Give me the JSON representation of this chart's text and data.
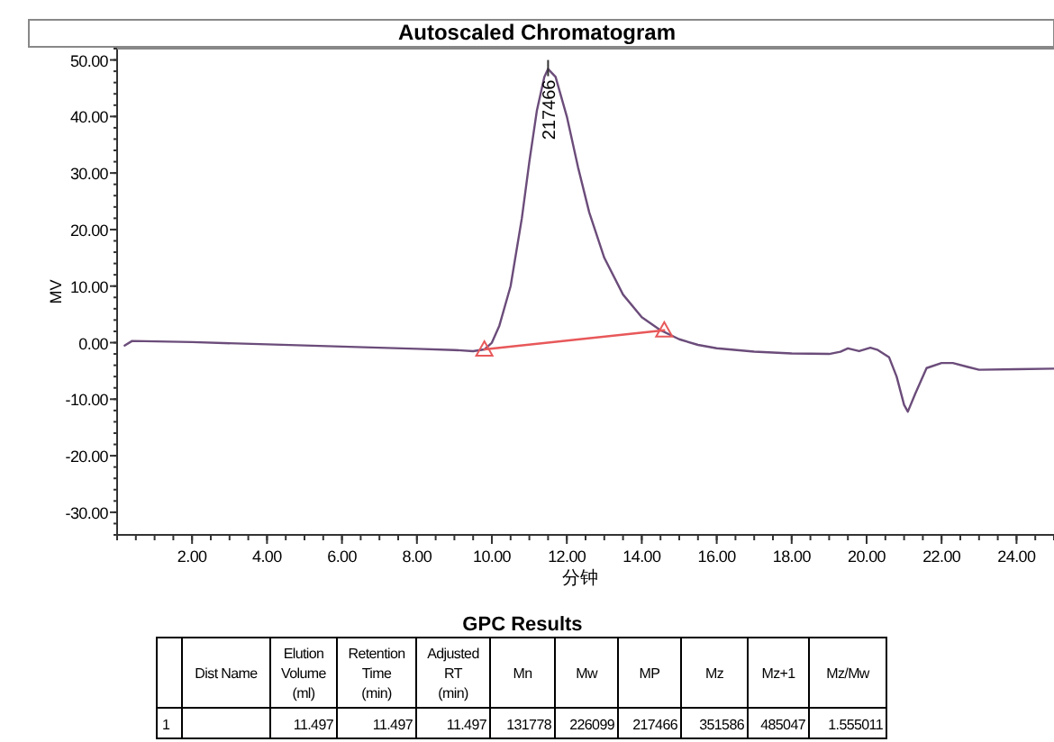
{
  "chart_data": {
    "type": "line",
    "title": "Autoscaled Chromatogram",
    "xlabel": "分钟",
    "ylabel": "MV",
    "xlim": [
      0,
      25
    ],
    "ylim": [
      -34,
      52
    ],
    "xticks": [
      {
        "value": 2,
        "label": "2.00"
      },
      {
        "value": 4,
        "label": "4.00"
      },
      {
        "value": 6,
        "label": "6.00"
      },
      {
        "value": 8,
        "label": "8.00"
      },
      {
        "value": 10,
        "label": "10.00"
      },
      {
        "value": 12,
        "label": "12.00"
      },
      {
        "value": 14,
        "label": "14.00"
      },
      {
        "value": 16,
        "label": "16.00"
      },
      {
        "value": 18,
        "label": "18.00"
      },
      {
        "value": 20,
        "label": "20.00"
      },
      {
        "value": 22,
        "label": "22.00"
      },
      {
        "value": 24,
        "label": "24.00"
      }
    ],
    "yticks": [
      {
        "value": -30,
        "label": "-30.00"
      },
      {
        "value": -20,
        "label": "-20.00"
      },
      {
        "value": -10,
        "label": "-10.00"
      },
      {
        "value": 0,
        "label": "0.00"
      },
      {
        "value": 10,
        "label": "10.00"
      },
      {
        "value": 20,
        "label": "20.00"
      },
      {
        "value": 30,
        "label": "30.00"
      },
      {
        "value": 40,
        "label": "40.00"
      },
      {
        "value": 50,
        "label": "50.00"
      }
    ],
    "grid": false,
    "series": [
      {
        "color": "#6b4c7a",
        "marker": "none",
        "x": [
          0.2,
          0.4,
          2,
          4,
          6,
          8,
          9,
          9.5,
          9.8,
          10.0,
          10.2,
          10.5,
          10.8,
          11.0,
          11.2,
          11.4,
          11.5,
          11.7,
          12.0,
          12.3,
          12.6,
          13.0,
          13.5,
          14.0,
          14.5,
          15.0,
          15.5,
          16,
          17,
          18,
          19,
          19.3,
          19.5,
          19.8,
          20.1,
          20.3,
          20.6,
          20.8,
          21.0,
          21.1,
          21.3,
          21.6,
          22.0,
          22.3,
          22.7,
          23.0,
          24,
          25
        ],
        "values": [
          -0.5,
          0.3,
          0.1,
          -0.3,
          -0.7,
          -1.1,
          -1.3,
          -1.5,
          -1.2,
          0,
          3,
          10,
          22,
          32,
          41,
          47,
          48.4,
          47,
          40,
          31,
          23,
          15,
          8.5,
          4.5,
          2.2,
          0.6,
          -0.4,
          -1.0,
          -1.6,
          -1.9,
          -2.0,
          -1.6,
          -1.0,
          -1.5,
          -0.9,
          -1.3,
          -2.6,
          -6,
          -11,
          -12.2,
          -9,
          -4.5,
          -3.6,
          -3.6,
          -4.3,
          -4.8,
          -4.7,
          -4.6
        ]
      },
      {
        "color": "#e8585a",
        "marker": "triangle",
        "x": [
          9.8,
          14.6
        ],
        "values": [
          -1.2,
          2.2
        ]
      }
    ],
    "annotations": [
      {
        "text": "217466",
        "x": 11.5,
        "y": 48.4
      },
      "GPC Results",
      "Dist Name",
      "Elution\nVolume\n(ml)",
      "Retention\nTime\n(min)",
      "Adjusted\nRT\n(min)",
      "Mn",
      "Mw",
      "MP",
      "Mz",
      "Mz+1",
      "Mz/Mw",
      "1",
      "11.497",
      "11.497",
      "11.497",
      "131778",
      "226099",
      "217466",
      "351586",
      "485047",
      "1.555011"
    ]
  }
}
